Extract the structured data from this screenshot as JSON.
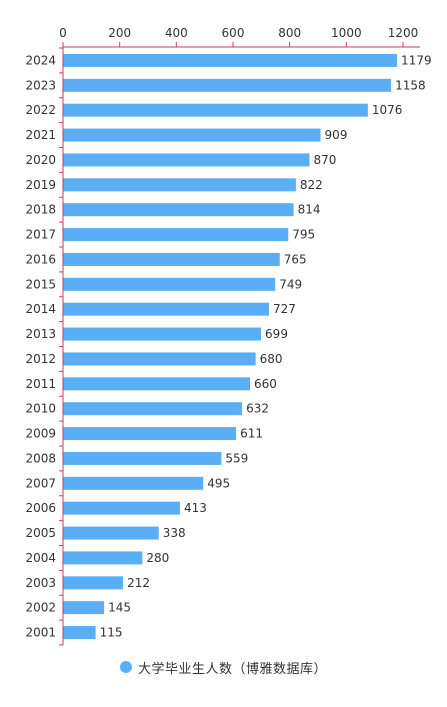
{
  "chart_data": {
    "type": "bar",
    "orientation": "horizontal",
    "categories": [
      "2024",
      "2023",
      "2022",
      "2021",
      "2020",
      "2019",
      "2018",
      "2017",
      "2016",
      "2015",
      "2014",
      "2013",
      "2012",
      "2011",
      "2010",
      "2009",
      "2008",
      "2007",
      "2006",
      "2005",
      "2004",
      "2003",
      "2002",
      "2001"
    ],
    "series": [
      {
        "name": "大学毕业生人数（博雅数据库）",
        "values": [
          1179,
          1158,
          1076,
          909,
          870,
          822,
          814,
          795,
          765,
          749,
          727,
          699,
          680,
          660,
          632,
          611,
          559,
          495,
          413,
          338,
          280,
          212,
          145,
          115
        ]
      }
    ],
    "xlim": [
      0,
      1260
    ],
    "x_ticks": [
      0,
      200,
      400,
      600,
      800,
      1000,
      1200
    ],
    "x_axis_position": "top",
    "grid": false,
    "legend_position": "bottom-center",
    "bar_color": "#5aaef5",
    "axis_color": "#c23f6a"
  },
  "legend": {
    "label": "大学毕业生人数（博雅数据库）"
  }
}
